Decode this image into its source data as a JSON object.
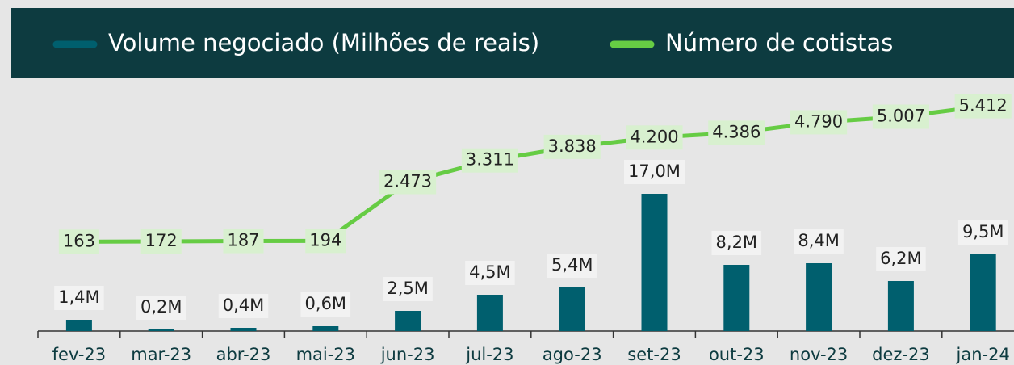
{
  "chart_data": {
    "type": "bar",
    "categories": [
      "fev-23",
      "mar-23",
      "abr-23",
      "mai-23",
      "jun-23",
      "jul-23",
      "ago-23",
      "set-23",
      "out-23",
      "nov-23",
      "dez-23",
      "jan-24"
    ],
    "series": [
      {
        "name": "Volume negociado (Milhões de reais)",
        "type": "bar",
        "color": "#005f6e",
        "values": [
          1.4,
          0.2,
          0.4,
          0.6,
          2.5,
          4.5,
          5.4,
          17.0,
          8.2,
          8.4,
          6.2,
          9.5
        ],
        "value_labels": [
          "1,4M",
          "0,2M",
          "0,4M",
          "0,6M",
          "2,5M",
          "4,5M",
          "5,4M",
          "17,0M",
          "8,2M",
          "8,4M",
          "6,2M",
          "9,5M"
        ]
      },
      {
        "name": "Número de cotistas",
        "type": "line",
        "axis": "y2",
        "color": "#66cc44",
        "values": [
          163,
          172,
          187,
          194,
          2473,
          3311,
          3838,
          4200,
          4386,
          4790,
          5007,
          5412
        ],
        "value_labels": [
          "163",
          "172",
          "187",
          "194",
          "2.473",
          "3.311",
          "3.838",
          "4.200",
          "4.386",
          "4.790",
          "5.007",
          "5.412"
        ]
      }
    ],
    "ylim": [
      0,
      31
    ],
    "y2lim": [
      -3300,
      6400
    ],
    "legend": "top"
  }
}
